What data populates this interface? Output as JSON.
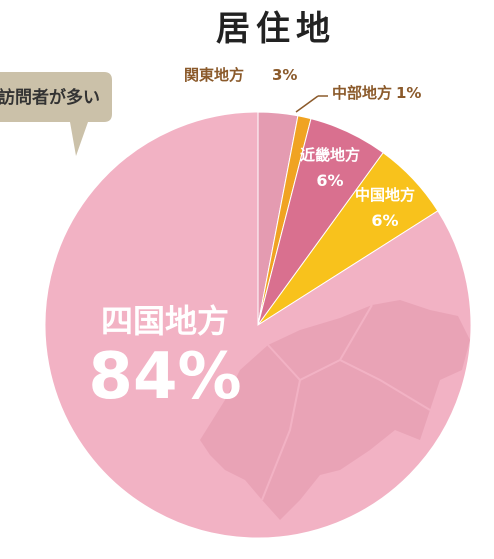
{
  "chart_data": {
    "type": "pie",
    "title": "居住地",
    "categories": [
      "関東地方",
      "中部地方",
      "近畿地方",
      "中国地方",
      "四国地方"
    ],
    "values": [
      3,
      1,
      6,
      6,
      84
    ],
    "value_labels": [
      "3%",
      "1%",
      "6%",
      "6%",
      "84%"
    ],
    "colors": [
      "#e49bb1",
      "#f0a322",
      "#d9708f",
      "#f8c21c",
      "#f2b2c4"
    ],
    "annotation": "訪問者が多い"
  }
}
